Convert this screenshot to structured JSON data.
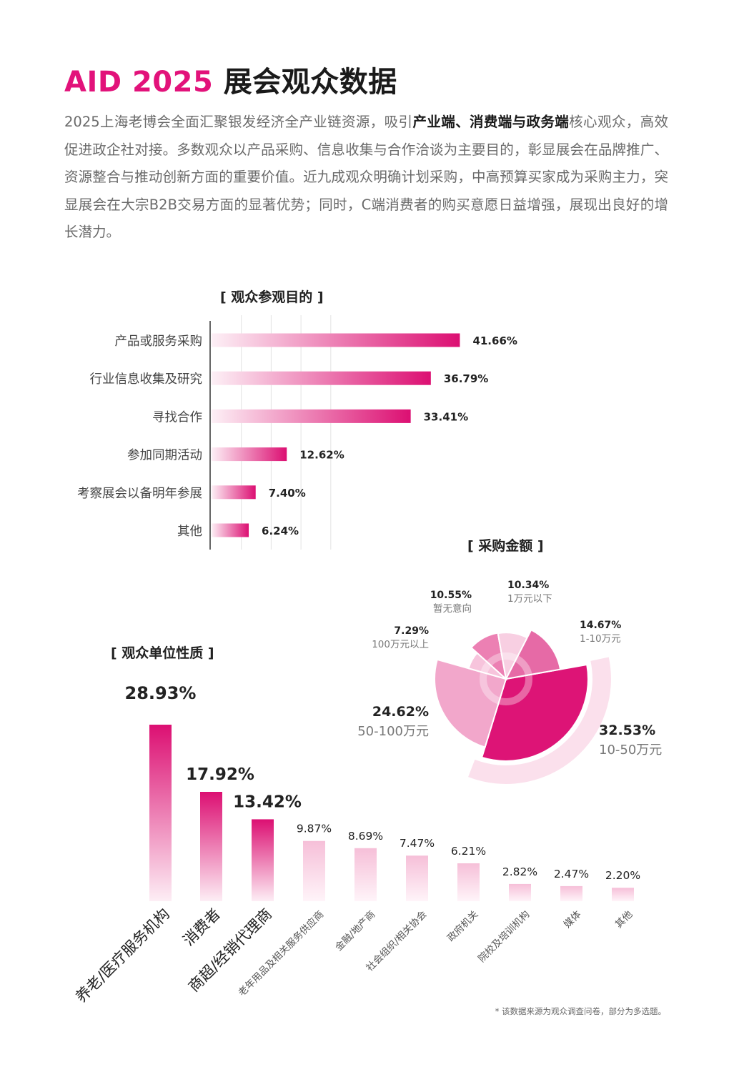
{
  "header": {
    "title_accent": "AID 2025",
    "title_rest": "展会观众数据"
  },
  "intro": {
    "part1": "2025上海老博会全面汇聚银发经济全产业链资源，吸引",
    "bold": "产业端、消费端与政务端",
    "part2": "核心观众，高效促进政企社对接。多数观众以产品采购、信息收集与合作洽谈为主要目的，彰显展会在品牌推广、资源整合与推动创新方面的重要价值。近九成观众明确计划采购，中高预算买家成为采购主力，突显展会在大宗B2B交易方面的显著优势；同时，C端消费者的购买意愿日益增强，展现出良好的增长潜力。"
  },
  "footnote": "* 该数据来源为观众调查问卷，部分为多选题。",
  "colors": {
    "accent": "#e2127a",
    "bar_light": "#fbe4ef"
  },
  "chart_data": [
    {
      "type": "bar",
      "orientation": "horizontal",
      "title": "[ 观众参观目的 ]",
      "categories": [
        "产品或服务采购",
        "行业信息收集及研究",
        "寻找合作",
        "参加同期活动",
        "考察展会以备明年参展",
        "其他"
      ],
      "values": [
        41.66,
        36.79,
        33.41,
        12.62,
        7.4,
        6.24
      ],
      "value_labels": [
        "41.66%",
        "36.79%",
        "33.41%",
        "12.62%",
        "7.40%",
        "6.24%"
      ],
      "xlim": [
        0,
        45
      ],
      "grid": true
    },
    {
      "type": "pie",
      "subtype": "nightingale",
      "title": "[ 采购金额 ]",
      "slices": [
        {
          "label": "10-50万元",
          "value": 32.53,
          "value_label": "32.53%",
          "color": "#dd1476"
        },
        {
          "label": "50-100万元",
          "value": 24.62,
          "value_label": "24.62%",
          "color": "#f2a7cb"
        },
        {
          "label": "100万元以上",
          "value": 7.29,
          "value_label": "7.29%",
          "color": "#f7c4dc"
        },
        {
          "label": "暂无意向",
          "value": 10.55,
          "value_label": "10.55%",
          "color": "#ec80b3"
        },
        {
          "label": "1万元以下",
          "value": 10.34,
          "value_label": "10.34%",
          "color": "#f8cfe2"
        },
        {
          "label": "1-10万元",
          "value": 14.67,
          "value_label": "14.67%",
          "color": "#e66aa6"
        }
      ]
    },
    {
      "type": "bar",
      "orientation": "vertical",
      "title": "[ 观众单位性质 ]",
      "categories": [
        "养老/医疗服务机构",
        "消费者",
        "商超/经销代理商",
        "老年用品及相关服务供应商",
        "金融/地产商",
        "社会组织/相关协会",
        "政府机关",
        "院校及培训机构",
        "媒体",
        "其他"
      ],
      "values": [
        28.93,
        17.92,
        13.42,
        9.87,
        8.69,
        7.47,
        6.21,
        2.82,
        2.47,
        2.2
      ],
      "value_labels": [
        "28.93%",
        "17.92%",
        "13.42%",
        "9.87%",
        "8.69%",
        "7.47%",
        "6.21%",
        "2.82%",
        "2.47%",
        "2.20%"
      ],
      "ylim": [
        0,
        30
      ]
    }
  ]
}
